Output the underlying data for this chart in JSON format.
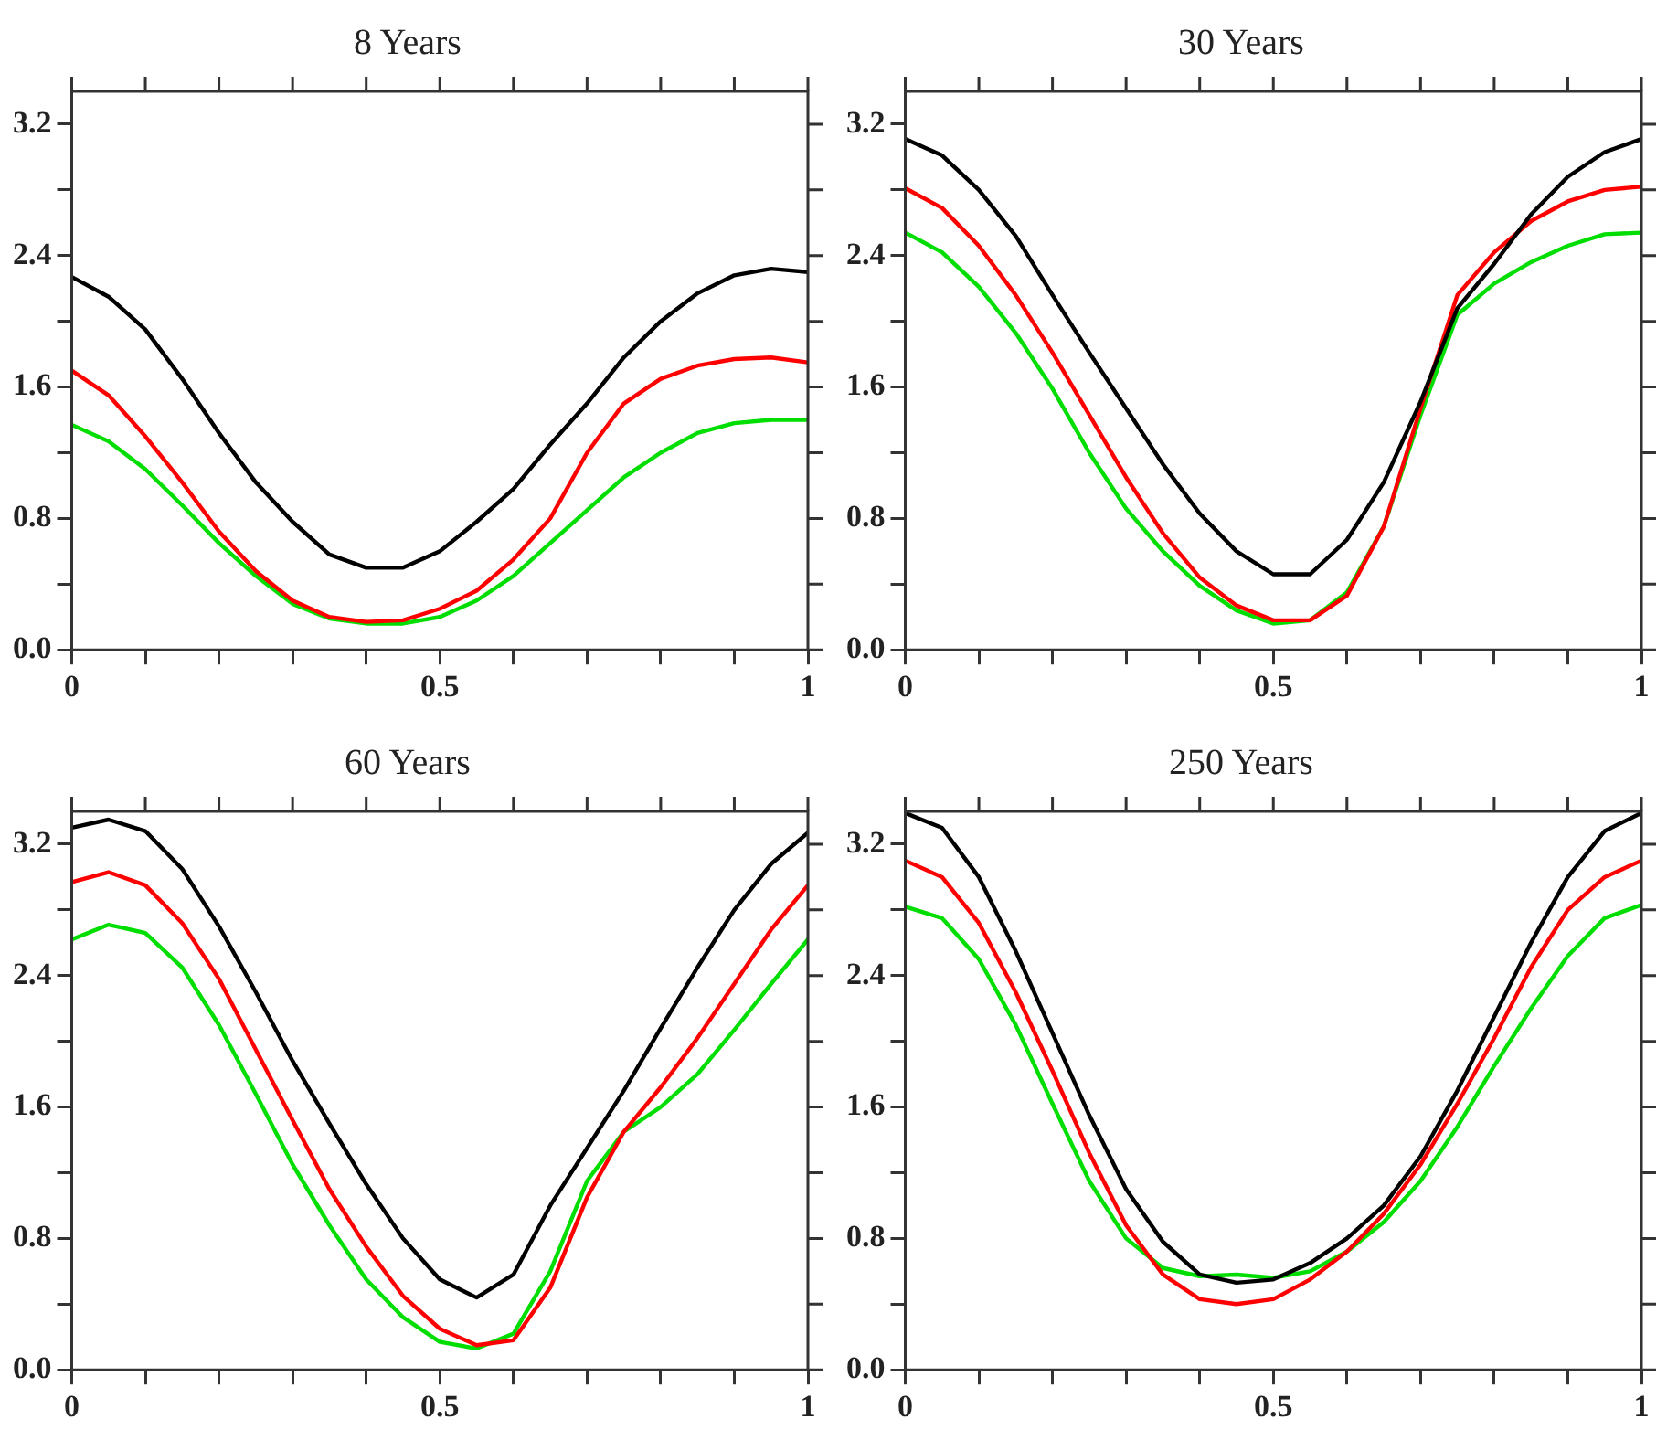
{
  "chart_data": [
    {
      "type": "line",
      "title": "8 Years",
      "x": [
        0,
        0.05,
        0.1,
        0.15,
        0.2,
        0.25,
        0.3,
        0.35,
        0.4,
        0.45,
        0.5,
        0.55,
        0.6,
        0.65,
        0.7,
        0.75,
        0.8,
        0.85,
        0.9,
        0.95,
        1
      ],
      "xlim": [
        0,
        1
      ],
      "ylim": [
        0,
        3.4
      ],
      "grid": false,
      "legend": false,
      "marker": "none",
      "line_style": "solid",
      "xticks": [
        0,
        {
          "value": 0.1,
          "label": null
        },
        {
          "value": 0.2,
          "label": null
        },
        {
          "value": 0.3,
          "label": null
        },
        {
          "value": 0.4,
          "label": null
        },
        0.5,
        {
          "value": 0.6,
          "label": null
        },
        {
          "value": 0.7,
          "label": null
        },
        {
          "value": 0.8,
          "label": null
        },
        {
          "value": 0.9,
          "label": null
        },
        1
      ],
      "yticks": [
        {
          "value": 0,
          "label": "0.0"
        },
        {
          "value": 0.4,
          "label": null
        },
        0.8,
        {
          "value": 1.2,
          "label": null
        },
        1.6,
        {
          "value": 2.0,
          "label": null
        },
        2.4,
        {
          "value": 2.8,
          "label": null
        },
        3.2
      ],
      "series": [
        {
          "color": "#000000",
          "values": [
            2.27,
            2.15,
            1.95,
            1.65,
            1.32,
            1.02,
            0.78,
            0.58,
            0.5,
            0.5,
            0.6,
            0.78,
            0.98,
            1.25,
            1.5,
            1.78,
            2.0,
            2.17,
            2.28,
            2.32,
            2.3
          ]
        },
        {
          "color": "#ff0000",
          "values": [
            1.7,
            1.55,
            1.3,
            1.02,
            0.72,
            0.48,
            0.3,
            0.2,
            0.17,
            0.18,
            0.25,
            0.36,
            0.55,
            0.8,
            1.2,
            1.5,
            1.65,
            1.73,
            1.77,
            1.78,
            1.75
          ]
        },
        {
          "color": "#00dd00",
          "values": [
            1.37,
            1.27,
            1.1,
            0.88,
            0.65,
            0.45,
            0.28,
            0.19,
            0.16,
            0.16,
            0.2,
            0.3,
            0.45,
            0.65,
            0.85,
            1.05,
            1.2,
            1.32,
            1.38,
            1.4,
            1.4
          ]
        }
      ]
    },
    {
      "type": "line",
      "title": "30 Years",
      "x": [
        0,
        0.05,
        0.1,
        0.15,
        0.2,
        0.25,
        0.3,
        0.35,
        0.4,
        0.45,
        0.5,
        0.55,
        0.6,
        0.65,
        0.7,
        0.75,
        0.8,
        0.85,
        0.9,
        0.95,
        1
      ],
      "xlim": [
        0,
        1
      ],
      "ylim": [
        0,
        3.4
      ],
      "grid": false,
      "legend": false,
      "marker": "none",
      "line_style": "solid",
      "xticks": [
        0,
        {
          "value": 0.1,
          "label": null
        },
        {
          "value": 0.2,
          "label": null
        },
        {
          "value": 0.3,
          "label": null
        },
        {
          "value": 0.4,
          "label": null
        },
        0.5,
        {
          "value": 0.6,
          "label": null
        },
        {
          "value": 0.7,
          "label": null
        },
        {
          "value": 0.8,
          "label": null
        },
        {
          "value": 0.9,
          "label": null
        },
        1
      ],
      "yticks": [
        {
          "value": 0,
          "label": "0.0"
        },
        {
          "value": 0.4,
          "label": null
        },
        0.8,
        {
          "value": 1.2,
          "label": null
        },
        1.6,
        {
          "value": 2.0,
          "label": null
        },
        2.4,
        {
          "value": 2.8,
          "label": null
        },
        3.2
      ],
      "series": [
        {
          "color": "#000000",
          "values": [
            3.11,
            3.01,
            2.8,
            2.52,
            2.16,
            1.81,
            1.47,
            1.13,
            0.83,
            0.6,
            0.46,
            0.46,
            0.67,
            1.02,
            1.51,
            2.08,
            2.35,
            2.65,
            2.88,
            3.03,
            3.11
          ]
        },
        {
          "color": "#ff0000",
          "values": [
            2.81,
            2.69,
            2.46,
            2.16,
            1.81,
            1.43,
            1.05,
            0.71,
            0.44,
            0.27,
            0.18,
            0.18,
            0.33,
            0.75,
            1.47,
            2.16,
            2.42,
            2.61,
            2.73,
            2.8,
            2.82
          ]
        },
        {
          "color": "#00dd00",
          "values": [
            2.54,
            2.42,
            2.21,
            1.93,
            1.59,
            1.2,
            0.86,
            0.6,
            0.39,
            0.24,
            0.16,
            0.18,
            0.35,
            0.75,
            1.43,
            2.04,
            2.23,
            2.36,
            2.46,
            2.53,
            2.54
          ]
        }
      ]
    },
    {
      "type": "line",
      "title": "60 Years",
      "x": [
        0,
        0.05,
        0.1,
        0.15,
        0.2,
        0.25,
        0.3,
        0.35,
        0.4,
        0.45,
        0.5,
        0.55,
        0.6,
        0.65,
        0.7,
        0.75,
        0.8,
        0.85,
        0.9,
        0.95,
        1
      ],
      "xlim": [
        0,
        1
      ],
      "ylim": [
        0,
        3.4
      ],
      "grid": false,
      "legend": false,
      "marker": "none",
      "line_style": "solid",
      "xticks": [
        0,
        {
          "value": 0.1,
          "label": null
        },
        {
          "value": 0.2,
          "label": null
        },
        {
          "value": 0.3,
          "label": null
        },
        {
          "value": 0.4,
          "label": null
        },
        0.5,
        {
          "value": 0.6,
          "label": null
        },
        {
          "value": 0.7,
          "label": null
        },
        {
          "value": 0.8,
          "label": null
        },
        {
          "value": 0.9,
          "label": null
        },
        1
      ],
      "yticks": [
        {
          "value": 0,
          "label": "0.0"
        },
        {
          "value": 0.4,
          "label": null
        },
        0.8,
        {
          "value": 1.2,
          "label": null
        },
        1.6,
        {
          "value": 2.0,
          "label": null
        },
        2.4,
        {
          "value": 2.8,
          "label": null
        },
        3.2
      ],
      "series": [
        {
          "color": "#000000",
          "values": [
            3.3,
            3.35,
            3.28,
            3.05,
            2.7,
            2.3,
            1.88,
            1.5,
            1.13,
            0.8,
            0.55,
            0.44,
            0.58,
            1.0,
            1.35,
            1.7,
            2.08,
            2.45,
            2.8,
            3.08,
            3.27
          ]
        },
        {
          "color": "#ff0000",
          "values": [
            2.97,
            3.03,
            2.95,
            2.72,
            2.38,
            1.95,
            1.52,
            1.1,
            0.75,
            0.45,
            0.25,
            0.15,
            0.18,
            0.5,
            1.05,
            1.45,
            1.72,
            2.02,
            2.35,
            2.68,
            2.95
          ]
        },
        {
          "color": "#00dd00",
          "values": [
            2.62,
            2.71,
            2.66,
            2.45,
            2.1,
            1.68,
            1.25,
            0.88,
            0.55,
            0.32,
            0.17,
            0.13,
            0.22,
            0.6,
            1.15,
            1.45,
            1.6,
            1.8,
            2.07,
            2.35,
            2.62
          ]
        }
      ]
    },
    {
      "type": "line",
      "title": "250 Years",
      "x": [
        0,
        0.05,
        0.1,
        0.15,
        0.2,
        0.25,
        0.3,
        0.35,
        0.4,
        0.45,
        0.5,
        0.55,
        0.6,
        0.65,
        0.7,
        0.75,
        0.8,
        0.85,
        0.9,
        0.95,
        1
      ],
      "xlim": [
        0,
        1
      ],
      "ylim": [
        0,
        3.4
      ],
      "grid": false,
      "legend": false,
      "marker": "none",
      "line_style": "solid",
      "xticks": [
        0,
        {
          "value": 0.1,
          "label": null
        },
        {
          "value": 0.2,
          "label": null
        },
        {
          "value": 0.3,
          "label": null
        },
        {
          "value": 0.4,
          "label": null
        },
        0.5,
        {
          "value": 0.6,
          "label": null
        },
        {
          "value": 0.7,
          "label": null
        },
        {
          "value": 0.8,
          "label": null
        },
        {
          "value": 0.9,
          "label": null
        },
        1
      ],
      "yticks": [
        {
          "value": 0,
          "label": "0.0"
        },
        {
          "value": 0.4,
          "label": null
        },
        0.8,
        {
          "value": 1.2,
          "label": null
        },
        1.6,
        {
          "value": 2.0,
          "label": null
        },
        2.4,
        {
          "value": 2.8,
          "label": null
        },
        3.2
      ],
      "series": [
        {
          "color": "#000000",
          "values": [
            3.39,
            3.3,
            3.0,
            2.55,
            2.05,
            1.55,
            1.1,
            0.78,
            0.58,
            0.53,
            0.55,
            0.65,
            0.8,
            1.0,
            1.3,
            1.7,
            2.15,
            2.6,
            3.0,
            3.28,
            3.39
          ]
        },
        {
          "color": "#ff0000",
          "values": [
            3.1,
            3.0,
            2.72,
            2.3,
            1.82,
            1.32,
            0.88,
            0.58,
            0.43,
            0.4,
            0.43,
            0.55,
            0.72,
            0.95,
            1.25,
            1.62,
            2.02,
            2.45,
            2.8,
            3.0,
            3.1
          ]
        },
        {
          "color": "#00dd00",
          "values": [
            2.82,
            2.75,
            2.5,
            2.1,
            1.62,
            1.15,
            0.8,
            0.62,
            0.57,
            0.58,
            0.56,
            0.6,
            0.72,
            0.9,
            1.15,
            1.48,
            1.85,
            2.2,
            2.52,
            2.75,
            2.83
          ]
        }
      ]
    }
  ]
}
